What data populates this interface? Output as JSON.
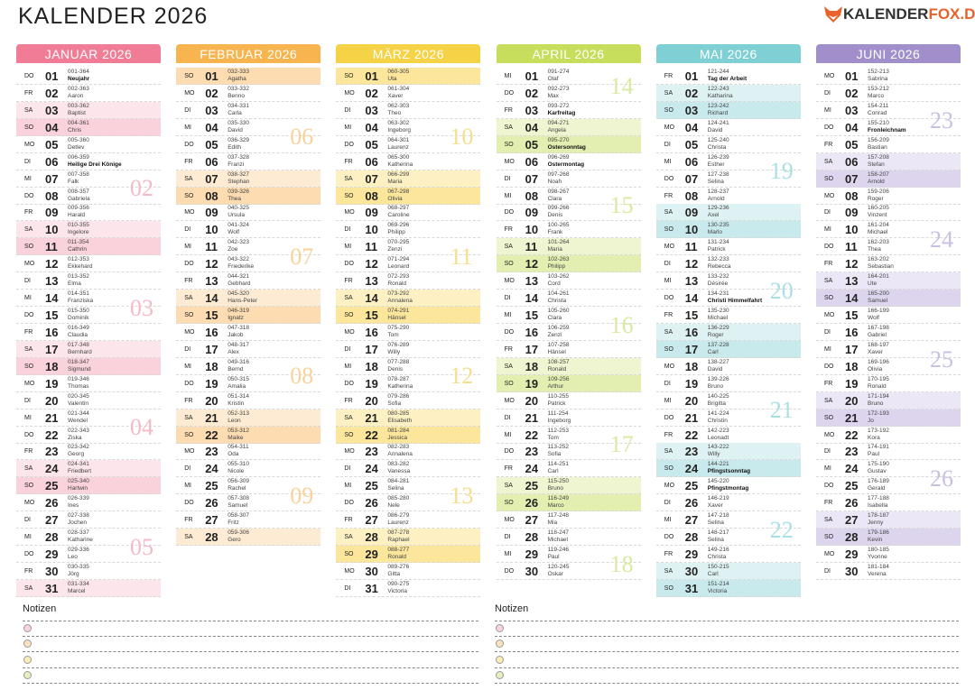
{
  "header": {
    "title": "KALENDER 2026",
    "logo": [
      "KALENDER",
      "FOX.DE"
    ]
  },
  "months": [
    {
      "title": "JANUAR 2026",
      "color": "#f07d95",
      "sat": "#fde6eb",
      "sun": "#fad2db",
      "week_color": "#f6b9c6",
      "weeks": [
        null,
        "02",
        "03",
        "04",
        "05"
      ],
      "days": [
        [
          "DO",
          "01",
          "001-364",
          "Neujahr",
          true
        ],
        [
          "FR",
          "02",
          "002-363",
          "Aaron"
        ],
        [
          "SA",
          "03",
          "003-362",
          "Baptist"
        ],
        [
          "SO",
          "04",
          "004-361",
          "Chris"
        ],
        [
          "MO",
          "05",
          "005-360",
          "Detlev"
        ],
        [
          "DI",
          "06",
          "006-359",
          "Heilige Drei Könige",
          true
        ],
        [
          "MI",
          "07",
          "007-358",
          "Falk"
        ],
        [
          "DO",
          "08",
          "008-357",
          "Gabriela"
        ],
        [
          "FR",
          "09",
          "009-356",
          "Harald"
        ],
        [
          "SA",
          "10",
          "010-355",
          "Ingelore"
        ],
        [
          "SO",
          "11",
          "011-354",
          "Cathrin"
        ],
        [
          "MO",
          "12",
          "012-353",
          "Ekkehard"
        ],
        [
          "DI",
          "13",
          "013-352",
          "Elma"
        ],
        [
          "MI",
          "14",
          "014-351",
          "Franziska"
        ],
        [
          "DO",
          "15",
          "015-350",
          "Dominik"
        ],
        [
          "FR",
          "16",
          "016-349",
          "Claudia"
        ],
        [
          "SA",
          "17",
          "017-348",
          "Bernhard"
        ],
        [
          "SO",
          "18",
          "018-347",
          "Sigmund"
        ],
        [
          "MO",
          "19",
          "019-346",
          "Thomas"
        ],
        [
          "DI",
          "20",
          "020-345",
          "Valentin"
        ],
        [
          "MI",
          "21",
          "021-344",
          "Wendel"
        ],
        [
          "DO",
          "22",
          "022-343",
          "Ziska"
        ],
        [
          "FR",
          "23",
          "023-342",
          "Georg"
        ],
        [
          "SA",
          "24",
          "024-341",
          "Friedbert"
        ],
        [
          "SO",
          "25",
          "025-340",
          "Hartwin"
        ],
        [
          "MO",
          "26",
          "026-339",
          "Ines"
        ],
        [
          "DI",
          "27",
          "027-338",
          "Jochen"
        ],
        [
          "MI",
          "28",
          "028-337",
          "Katharine"
        ],
        [
          "DO",
          "29",
          "029-336",
          "Leo"
        ],
        [
          "FR",
          "30",
          "030-335",
          "Jörg"
        ],
        [
          "SA",
          "31",
          "031-334",
          "Marcel"
        ]
      ]
    },
    {
      "title": "FEBRUAR 2026",
      "color": "#f8b44f",
      "sat": "#fdebd3",
      "sun": "#fcdcb0",
      "week_color": "#f9d29b",
      "weeks": [
        "06",
        "07",
        "08",
        "09"
      ],
      "days": [
        [
          "SO",
          "01",
          "032-333",
          "Agatha"
        ],
        [
          "MO",
          "02",
          "033-332",
          "Benno"
        ],
        [
          "DI",
          "03",
          "034-331",
          "Carla"
        ],
        [
          "MI",
          "04",
          "035-330",
          "David"
        ],
        [
          "DO",
          "05",
          "036-329",
          "Edith"
        ],
        [
          "FR",
          "06",
          "037-328",
          "Franzi"
        ],
        [
          "SA",
          "07",
          "038-327",
          "Stephan"
        ],
        [
          "SO",
          "08",
          "039-326",
          "Thea"
        ],
        [
          "MO",
          "09",
          "040-325",
          "Ursula"
        ],
        [
          "DI",
          "10",
          "041-324",
          "Wolf"
        ],
        [
          "MI",
          "11",
          "042-323",
          "Zoe"
        ],
        [
          "DO",
          "12",
          "043-322",
          "Friederike"
        ],
        [
          "FR",
          "13",
          "044-321",
          "Gebhard"
        ],
        [
          "SA",
          "14",
          "045-320",
          "Hans-Peter"
        ],
        [
          "SO",
          "15",
          "046-319",
          "Ignatz"
        ],
        [
          "MO",
          "16",
          "047-318",
          "Jakob"
        ],
        [
          "DI",
          "17",
          "048-317",
          "Alex"
        ],
        [
          "MI",
          "18",
          "049-316",
          "Bernd"
        ],
        [
          "DO",
          "19",
          "050-315",
          "Amalia"
        ],
        [
          "FR",
          "20",
          "051-314",
          "Kristin"
        ],
        [
          "SA",
          "21",
          "052-313",
          "Leon"
        ],
        [
          "SO",
          "22",
          "053-312",
          "Maike"
        ],
        [
          "MO",
          "23",
          "054-311",
          "Oda"
        ],
        [
          "DI",
          "24",
          "055-310",
          "Nicole"
        ],
        [
          "MI",
          "25",
          "056-309",
          "Rachel"
        ],
        [
          "DO",
          "26",
          "057-308",
          "Samuel"
        ],
        [
          "FR",
          "27",
          "058-307",
          "Fritz"
        ],
        [
          "SA",
          "28",
          "059-306",
          "Gero"
        ]
      ]
    },
    {
      "title": "MÄRZ 2026",
      "color": "#f6d247",
      "sat": "#fdf1c4",
      "sun": "#fbe69c",
      "week_color": "#f4df8e",
      "weeks": [
        "10",
        "11",
        "12",
        "13"
      ],
      "days": [
        [
          "SO",
          "01",
          "060-305",
          "Uta"
        ],
        [
          "MO",
          "02",
          "061-304",
          "Xaver"
        ],
        [
          "DI",
          "03",
          "062-303",
          "Theo"
        ],
        [
          "MI",
          "04",
          "063-302",
          "Ingeborg"
        ],
        [
          "DO",
          "05",
          "064-301",
          "Laurenz"
        ],
        [
          "FR",
          "06",
          "065-300",
          "Katherina"
        ],
        [
          "SA",
          "07",
          "066-299",
          "Maria"
        ],
        [
          "SO",
          "08",
          "067-298",
          "Olivia"
        ],
        [
          "MO",
          "09",
          "068-297",
          "Caroline"
        ],
        [
          "DI",
          "10",
          "069-296",
          "Philipp"
        ],
        [
          "MI",
          "11",
          "070-295",
          "Zenzi"
        ],
        [
          "DO",
          "12",
          "071-294",
          "Leonard"
        ],
        [
          "FR",
          "13",
          "072-293",
          "Ronald"
        ],
        [
          "SA",
          "14",
          "073-292",
          "Annalena"
        ],
        [
          "SO",
          "15",
          "074-291",
          "Hänsel"
        ],
        [
          "MO",
          "16",
          "075-290",
          "Tom"
        ],
        [
          "DI",
          "17",
          "076-289",
          "Willy"
        ],
        [
          "MI",
          "18",
          "077-288",
          "Denis"
        ],
        [
          "DO",
          "19",
          "078-287",
          "Katherina"
        ],
        [
          "FR",
          "20",
          "079-286",
          "Sofia"
        ],
        [
          "SA",
          "21",
          "080-285",
          "Elisabeth"
        ],
        [
          "SO",
          "22",
          "081-284",
          "Jessica"
        ],
        [
          "MO",
          "23",
          "082-283",
          "Annalena"
        ],
        [
          "DI",
          "24",
          "083-282",
          "Vanessa"
        ],
        [
          "MI",
          "25",
          "084-281",
          "Selina"
        ],
        [
          "DO",
          "26",
          "085-280",
          "Nele"
        ],
        [
          "FR",
          "27",
          "086-279",
          "Laurenz"
        ],
        [
          "SA",
          "28",
          "087-278",
          "Raphael"
        ],
        [
          "SO",
          "29",
          "088-277",
          "Ronald"
        ],
        [
          "MO",
          "30",
          "089-276",
          "Gitta"
        ],
        [
          "DI",
          "31",
          "090-275",
          "Victoria"
        ]
      ]
    },
    {
      "title": "APRIL 2026",
      "color": "#c6de5c",
      "sat": "#eef5d0",
      "sun": "#e2efb0",
      "week_color": "#d9e9a0",
      "weeks": [
        "14",
        "15",
        "16",
        "17",
        "18"
      ],
      "days": [
        [
          "MI",
          "01",
          "091-274",
          "Olaf"
        ],
        [
          "DO",
          "02",
          "092-273",
          "Max"
        ],
        [
          "FR",
          "03",
          "093-272",
          "Karfreitag",
          true
        ],
        [
          "SA",
          "04",
          "094-271",
          "Angela"
        ],
        [
          "SO",
          "05",
          "095-270",
          "Ostersonntag",
          true
        ],
        [
          "MO",
          "06",
          "096-269",
          "Ostermontag",
          true
        ],
        [
          "DI",
          "07",
          "097-268",
          "Noah"
        ],
        [
          "MI",
          "08",
          "098-267",
          "Clara"
        ],
        [
          "DO",
          "09",
          "099-266",
          "Denis"
        ],
        [
          "FR",
          "10",
          "100-265",
          "Frank"
        ],
        [
          "SA",
          "11",
          "101-264",
          "Maria"
        ],
        [
          "SO",
          "12",
          "102-263",
          "Philipp"
        ],
        [
          "MO",
          "13",
          "103-262",
          "Cord"
        ],
        [
          "DI",
          "14",
          "104-261",
          "Christa"
        ],
        [
          "MI",
          "15",
          "105-260",
          "Clara"
        ],
        [
          "DO",
          "16",
          "106-259",
          "Zenzi"
        ],
        [
          "FR",
          "17",
          "107-258",
          "Hänsel"
        ],
        [
          "SA",
          "18",
          "108-257",
          "Ronald"
        ],
        [
          "SO",
          "19",
          "109-256",
          "Arthur"
        ],
        [
          "MO",
          "20",
          "110-255",
          "Patrick"
        ],
        [
          "DI",
          "21",
          "111-254",
          "Ingeborg"
        ],
        [
          "MI",
          "22",
          "112-253",
          "Tom"
        ],
        [
          "DO",
          "23",
          "113-252",
          "Sofia"
        ],
        [
          "FR",
          "24",
          "114-251",
          "Carl"
        ],
        [
          "SA",
          "25",
          "115-250",
          "Bruno"
        ],
        [
          "SO",
          "26",
          "116-249",
          "Marco"
        ],
        [
          "MO",
          "27",
          "117-248",
          "Mia"
        ],
        [
          "DI",
          "28",
          "118-247",
          "Michael"
        ],
        [
          "MI",
          "29",
          "119-246",
          "Paul"
        ],
        [
          "DO",
          "30",
          "120-245",
          "Oskar"
        ]
      ]
    },
    {
      "title": "MAI 2026",
      "color": "#7fd0d5",
      "sat": "#dff2f3",
      "sun": "#c9eaed",
      "week_color": "#a9e0e3",
      "weeks": [
        "19",
        "20",
        "21",
        "22"
      ],
      "days": [
        [
          "FR",
          "01",
          "121-244",
          "Tag der Arbeit",
          true
        ],
        [
          "SA",
          "02",
          "122-243",
          "Katharina"
        ],
        [
          "SO",
          "03",
          "123-242",
          "Richard"
        ],
        [
          "MO",
          "04",
          "124-241",
          "David"
        ],
        [
          "DI",
          "05",
          "125-240",
          "Christa"
        ],
        [
          "MI",
          "06",
          "126-239",
          "Esther"
        ],
        [
          "DO",
          "07",
          "127-238",
          "Selina"
        ],
        [
          "FR",
          "08",
          "128-237",
          "Arnold"
        ],
        [
          "SA",
          "09",
          "129-236",
          "Axel"
        ],
        [
          "SO",
          "10",
          "130-235",
          "Marlo"
        ],
        [
          "MO",
          "11",
          "131-234",
          "Patrick"
        ],
        [
          "DI",
          "12",
          "132-233",
          "Rebecca"
        ],
        [
          "MI",
          "13",
          "133-232",
          "Désirée"
        ],
        [
          "DO",
          "14",
          "134-231",
          "Christi Himmelfahrt",
          true
        ],
        [
          "FR",
          "15",
          "135-230",
          "Michael"
        ],
        [
          "SA",
          "16",
          "136-229",
          "Roger"
        ],
        [
          "SO",
          "17",
          "137-228",
          "Carl"
        ],
        [
          "MO",
          "18",
          "138-227",
          "David"
        ],
        [
          "DI",
          "19",
          "139-226",
          "Bruno"
        ],
        [
          "MI",
          "20",
          "140-225",
          "Brigitta"
        ],
        [
          "DO",
          "21",
          "141-224",
          "Christin"
        ],
        [
          "FR",
          "22",
          "142-223",
          "Leonadt"
        ],
        [
          "SA",
          "23",
          "143-222",
          "Willy"
        ],
        [
          "SO",
          "24",
          "144-221",
          "Pfingstsonntag",
          true
        ],
        [
          "MO",
          "25",
          "145-220",
          "Pfingstmontag",
          true
        ],
        [
          "DI",
          "26",
          "146-219",
          "Xaver"
        ],
        [
          "MI",
          "27",
          "147-218",
          "Selina"
        ],
        [
          "DO",
          "28",
          "148-217",
          "Selina"
        ],
        [
          "FR",
          "29",
          "149-216",
          "Christa"
        ],
        [
          "SA",
          "30",
          "150-215",
          "Carl"
        ],
        [
          "SO",
          "31",
          "151-214",
          "Victoria"
        ]
      ]
    },
    {
      "title": "JUNI 2026",
      "color": "#a08fcb",
      "sat": "#ece7f6",
      "sun": "#ddd5ee",
      "week_color": "#c9bfe3",
      "weeks": [
        "23",
        "24",
        "25",
        "26"
      ],
      "days": [
        [
          "MO",
          "01",
          "152-213",
          "Sabrina"
        ],
        [
          "DI",
          "02",
          "153-212",
          "Marco"
        ],
        [
          "MI",
          "03",
          "154-211",
          "Conrad"
        ],
        [
          "DO",
          "04",
          "155-210",
          "Fronleichnam",
          true
        ],
        [
          "FR",
          "05",
          "156-209",
          "Bastian"
        ],
        [
          "SA",
          "06",
          "157-208",
          "Stefan"
        ],
        [
          "SO",
          "07",
          "158-207",
          "Arnold"
        ],
        [
          "MO",
          "08",
          "159-206",
          "Roger"
        ],
        [
          "DI",
          "09",
          "160-205",
          "Vinzent"
        ],
        [
          "MI",
          "10",
          "161-204",
          "Michael"
        ],
        [
          "DO",
          "11",
          "162-203",
          "Thea"
        ],
        [
          "FR",
          "12",
          "163-202",
          "Sebastian"
        ],
        [
          "SA",
          "13",
          "164-201",
          "Ute"
        ],
        [
          "SO",
          "14",
          "165-200",
          "Samuel"
        ],
        [
          "MO",
          "15",
          "166-199",
          "Wolf"
        ],
        [
          "DI",
          "16",
          "167-198",
          "Gabriel"
        ],
        [
          "MI",
          "17",
          "168-197",
          "Xaver"
        ],
        [
          "DO",
          "18",
          "169-196",
          "Olivia"
        ],
        [
          "FR",
          "19",
          "170-195",
          "Ronald"
        ],
        [
          "SA",
          "20",
          "171-194",
          "Bruno"
        ],
        [
          "SO",
          "21",
          "172-193",
          "Jo"
        ],
        [
          "MO",
          "22",
          "173-192",
          "Kora"
        ],
        [
          "DI",
          "23",
          "174-191",
          "Paul"
        ],
        [
          "MI",
          "24",
          "175-190",
          "Gustav"
        ],
        [
          "DO",
          "25",
          "176-189",
          "Gerald"
        ],
        [
          "FR",
          "26",
          "177-188",
          "Isabella"
        ],
        [
          "SA",
          "27",
          "178-187",
          "Jenny"
        ],
        [
          "SO",
          "28",
          "179-186",
          "Kevin"
        ],
        [
          "MO",
          "29",
          "180-185",
          "Yvonne"
        ],
        [
          "DI",
          "30",
          "181-184",
          "Verena"
        ]
      ]
    }
  ],
  "notes": [
    "Notizen",
    "Notizen"
  ],
  "note_colors": [
    "#f9d4dc",
    "#fde2bd",
    "#fbeeb6",
    "#e6f0bf"
  ]
}
